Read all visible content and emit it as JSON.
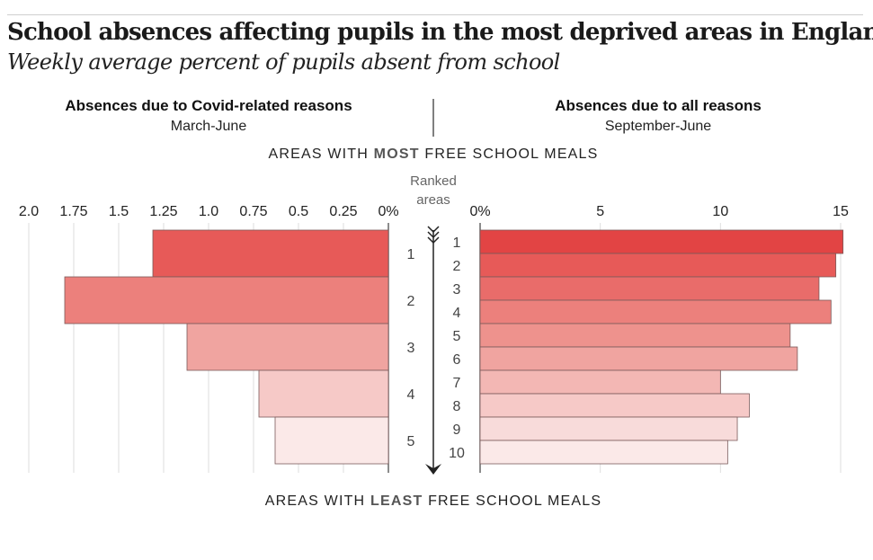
{
  "title": "School absences affecting pupils in the most deprived areas in England",
  "subtitle": "Weekly average percent of pupils absent from school",
  "top_label": {
    "pre": "AREAS WITH ",
    "bold": "MOST",
    "post": " FREE SCHOOL MEALS"
  },
  "bottom_label": {
    "pre": "AREAS WITH ",
    "bold": "LEAST",
    "post": " FREE SCHOOL MEALS"
  },
  "axis_center": {
    "line1": "Ranked",
    "line2": "areas"
  },
  "colors": [
    "#e24444",
    "#e75a58",
    "#e96c6a",
    "#ec807c",
    "#ee928d",
    "#f0a4a0",
    "#f3b7b4",
    "#f6c9c7",
    "#f8dbda",
    "#fbe9e8"
  ],
  "chart_data": [
    {
      "type": "bar",
      "orientation": "horizontal-left",
      "title": "Absences due to Covid-related reasons",
      "subtitle": "March-June",
      "categories": [
        "1",
        "2",
        "3",
        "4",
        "5"
      ],
      "values": [
        1.31,
        1.8,
        1.12,
        0.72,
        0.63
      ],
      "xlim": [
        0,
        2.0
      ],
      "ticks": [
        0,
        0.25,
        0.5,
        0.75,
        1.0,
        1.25,
        1.5,
        1.75,
        2.0
      ],
      "tick_labels": [
        "0%",
        "0.25",
        "0.5",
        "0.75",
        "1.0",
        "1.25",
        "1.5",
        "1.75",
        "2.0"
      ],
      "grid": true
    },
    {
      "type": "bar",
      "orientation": "horizontal-right",
      "title": "Absences due to all reasons",
      "subtitle": "September-June",
      "categories": [
        "1",
        "2",
        "3",
        "4",
        "5",
        "6",
        "7",
        "8",
        "9",
        "10"
      ],
      "values": [
        15.1,
        14.8,
        14.1,
        14.6,
        12.9,
        13.2,
        10.0,
        11.2,
        10.7,
        10.3
      ],
      "xlim": [
        0,
        15
      ],
      "ticks": [
        0,
        5,
        10,
        15
      ],
      "tick_labels": [
        "0%",
        "5",
        "10",
        "15"
      ],
      "grid": true
    }
  ]
}
